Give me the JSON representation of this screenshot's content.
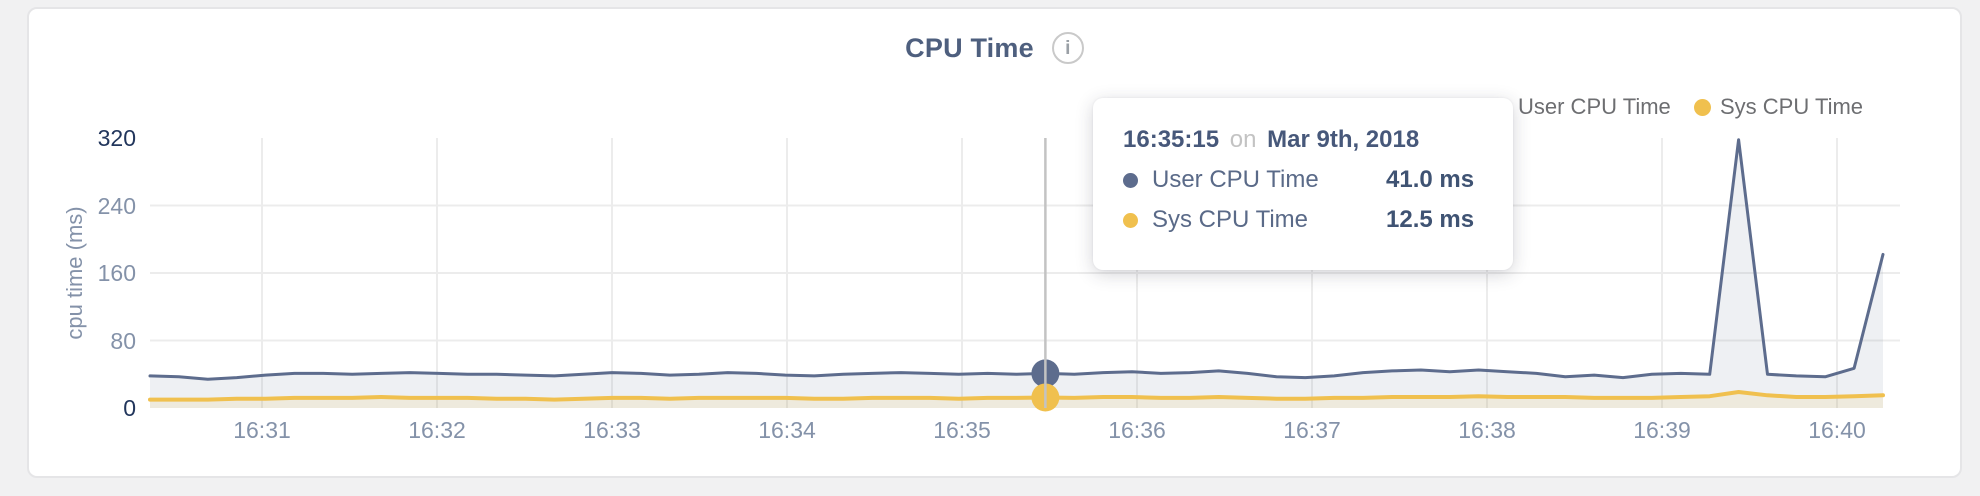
{
  "header": {
    "title": "CPU Time",
    "info_icon_glyph": "i"
  },
  "legend": {
    "items": [
      {
        "id": "user-cpu",
        "label": "User CPU Time",
        "color": "#5d6c8d"
      },
      {
        "id": "sys-cpu",
        "label": "Sys CPU Time",
        "color": "#f0c04e"
      }
    ]
  },
  "tooltip": {
    "time": "16:35:15",
    "joiner": "on",
    "date": "Mar 9th, 2018",
    "rows": [
      {
        "id": "user-cpu",
        "label": "User CPU Time",
        "value": "41.0 ms",
        "color": "#5d6c8d"
      },
      {
        "id": "sys-cpu",
        "label": "Sys CPU Time",
        "value": "12.5 ms",
        "color": "#f0c04e"
      }
    ]
  },
  "chart_data": {
    "type": "line",
    "title": "CPU Time",
    "xlabel": "",
    "ylabel": "cpu time (ms)",
    "ylim": [
      0,
      320
    ],
    "y_ticks": [
      320,
      240,
      160,
      80,
      0
    ],
    "x_ticks": [
      "16:31",
      "16:32",
      "16:33",
      "16:34",
      "16:35",
      "16:36",
      "16:37",
      "16:38",
      "16:39",
      "16:40"
    ],
    "grid": true,
    "legend_position": "top-right",
    "units": "ms",
    "sample_interval_seconds": 10,
    "series": [
      {
        "id": "user-cpu",
        "name": "User CPU Time",
        "color": "#5d6c8d",
        "fill": "rgba(90,106,140,0.10)",
        "values": [
          38,
          37,
          34,
          36,
          39,
          41,
          41,
          40,
          41,
          42,
          41,
          40,
          40,
          39,
          38,
          40,
          42,
          41,
          39,
          40,
          42,
          41,
          39,
          38,
          40,
          41,
          42,
          41,
          40,
          41,
          40,
          41,
          40,
          42,
          43,
          41,
          42,
          44,
          41,
          37,
          36,
          38,
          42,
          44,
          45,
          43,
          45,
          43,
          41,
          37,
          39,
          36,
          40,
          41,
          40,
          318,
          40,
          38,
          37,
          47,
          182
        ]
      },
      {
        "id": "sys-cpu",
        "name": "Sys CPU Time",
        "color": "#f0c04e",
        "fill": "rgba(240,192,78,0.13)",
        "values": [
          10,
          10,
          10,
          11,
          11,
          12,
          12,
          12,
          13,
          12,
          12,
          12,
          11,
          11,
          10,
          11,
          12,
          12,
          11,
          12,
          12,
          12,
          12,
          11,
          11,
          12,
          12,
          12,
          11,
          12,
          12,
          12.5,
          12,
          13,
          13,
          12,
          12,
          13,
          12,
          11,
          11,
          12,
          12,
          13,
          13,
          13,
          14,
          13,
          13,
          13,
          12,
          12,
          12,
          13,
          14,
          19,
          15,
          13,
          13,
          14,
          15
        ]
      }
    ],
    "hover": {
      "point_index": 31,
      "time": "16:35:15",
      "date": "Mar 9th, 2018",
      "values": {
        "user-cpu": 41.0,
        "sys-cpu": 12.5
      }
    }
  }
}
